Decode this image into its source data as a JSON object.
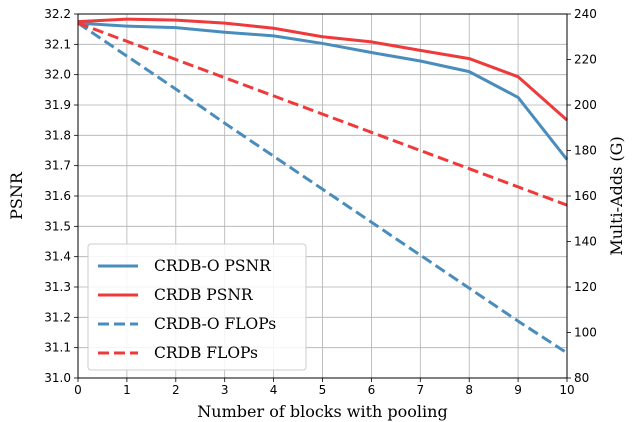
{
  "chart_data": {
    "type": "line",
    "title": "",
    "xlabel": "Number of blocks with pooling",
    "ylabel_left": "PSNR",
    "ylabel_right": "Multi-Adds (G)",
    "x": [
      0,
      1,
      2,
      3,
      4,
      5,
      6,
      7,
      8,
      9,
      10
    ],
    "xlim": [
      0,
      10
    ],
    "ylim_left": [
      31.0,
      32.2
    ],
    "ylim_right": [
      80,
      240
    ],
    "x_ticks": [
      "0",
      "1",
      "2",
      "3",
      "4",
      "5",
      "6",
      "7",
      "8",
      "9",
      "10"
    ],
    "y_ticks_left": [
      "31.0",
      "31.1",
      "31.2",
      "31.3",
      "31.4",
      "31.5",
      "31.6",
      "31.7",
      "31.8",
      "31.9",
      "32.0",
      "32.1",
      "32.2"
    ],
    "y_ticks_right": [
      "80",
      "100",
      "120",
      "140",
      "160",
      "180",
      "200",
      "220",
      "240"
    ],
    "grid": true,
    "legend_position": "bottom-left",
    "series": [
      {
        "name": "CRDB-O PSNR",
        "axis": "left",
        "style": "solid",
        "color": "#4a8dbd",
        "values": [
          32.17,
          32.16,
          32.155,
          32.14,
          32.128,
          32.103,
          32.073,
          32.045,
          32.01,
          31.925,
          31.72
        ]
      },
      {
        "name": "CRDB PSNR",
        "axis": "left",
        "style": "solid",
        "color": "#ee3a3a",
        "values": [
          32.175,
          32.183,
          32.18,
          32.17,
          32.153,
          32.125,
          32.108,
          32.08,
          32.053,
          31.993,
          31.85
        ]
      },
      {
        "name": "CRDB-O FLOPs",
        "axis": "right",
        "style": "dashed",
        "color": "#4a8dbd",
        "values": [
          236,
          221.5,
          207,
          192,
          177.5,
          163,
          148.5,
          134,
          119.5,
          105,
          91
        ]
      },
      {
        "name": "CRDB FLOPs",
        "axis": "right",
        "style": "dashed",
        "color": "#ee3a3a",
        "values": [
          236,
          228,
          220,
          212,
          204,
          196,
          188,
          180,
          172,
          164,
          156
        ]
      }
    ]
  }
}
